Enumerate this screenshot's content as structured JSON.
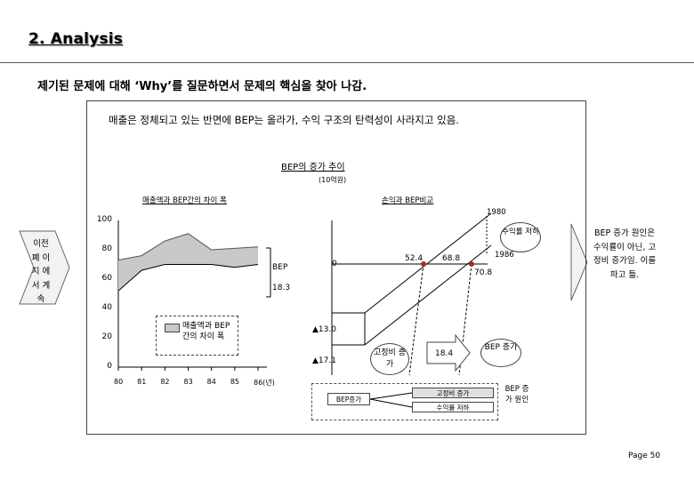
{
  "header": {
    "title": "2. Analysis",
    "subtitle": "제기된 문제에 대해 ‘Why’를 질문하면서 문제의 핵심을 찾아 나감."
  },
  "intro_text": "매출은 정체되고 있는 반면에 BEP는 올라가, 수익 구조의 탄력성이 사라지고 있음.",
  "chart_data": [
    {
      "type": "line",
      "title": "매출액과 BEP간의 차이 폭",
      "categories": [
        "80",
        "81",
        "82",
        "83",
        "84",
        "85",
        "86(년)"
      ],
      "ylim": [
        0,
        100
      ],
      "yticks": [
        "100",
        "80",
        "60",
        "40",
        "20",
        "0"
      ],
      "series": [
        {
          "name": "매출액",
          "values": [
            73,
            76,
            86,
            91,
            80,
            81,
            82
          ]
        },
        {
          "name": "BEP",
          "values": [
            52,
            66,
            70,
            70,
            70,
            68,
            70
          ]
        }
      ],
      "legend": "매출액과 BEP 간의 차이 폭",
      "annotations": [
        "BEP",
        "18.3",
        "▲13.0",
        "▲17.1"
      ]
    },
    {
      "type": "line",
      "title": "손익과 BEP비교",
      "labels": [
        "1980",
        "1986",
        "0",
        "52.4",
        "68.8",
        "70.8"
      ],
      "annotations": [
        "수익률 저하",
        "고정비 증가",
        "18.4",
        "BEP 증가"
      ]
    }
  ],
  "chart_header": {
    "title": "BEP의 증가 추이",
    "unit": "(10억원)"
  },
  "left_chart": {
    "bep_label": "BEP",
    "gap_value": "18.3",
    "legend_text": "매출액과 BEP 간의 차이 폭",
    "delta_1": "▲13.0",
    "delta_2": "▲17.1"
  },
  "right_chart": {
    "year_1980": "1980",
    "year_1986": "1986",
    "zero": "0",
    "v1": "52.4",
    "v2": "68.8",
    "v3": "70.8",
    "callout_profit": "수익률 저하",
    "fixed_cost": "고정비 증가",
    "arrow_value": "18.4",
    "bep_increase": "BEP 증가"
  },
  "side_left": "이전 폐 이지 에서 계속",
  "side_right": "BEP 증가 원인은 수익률이 아닌, 고정비 증가임. 이를 파고 듦.",
  "bottom_flow": {
    "bep_increase": "BEP증가",
    "fixed_cost": "고정비 증가",
    "profit_drop": "수익률 저하",
    "cause": "BEP 증가 원인"
  },
  "page_number": "Page 50"
}
